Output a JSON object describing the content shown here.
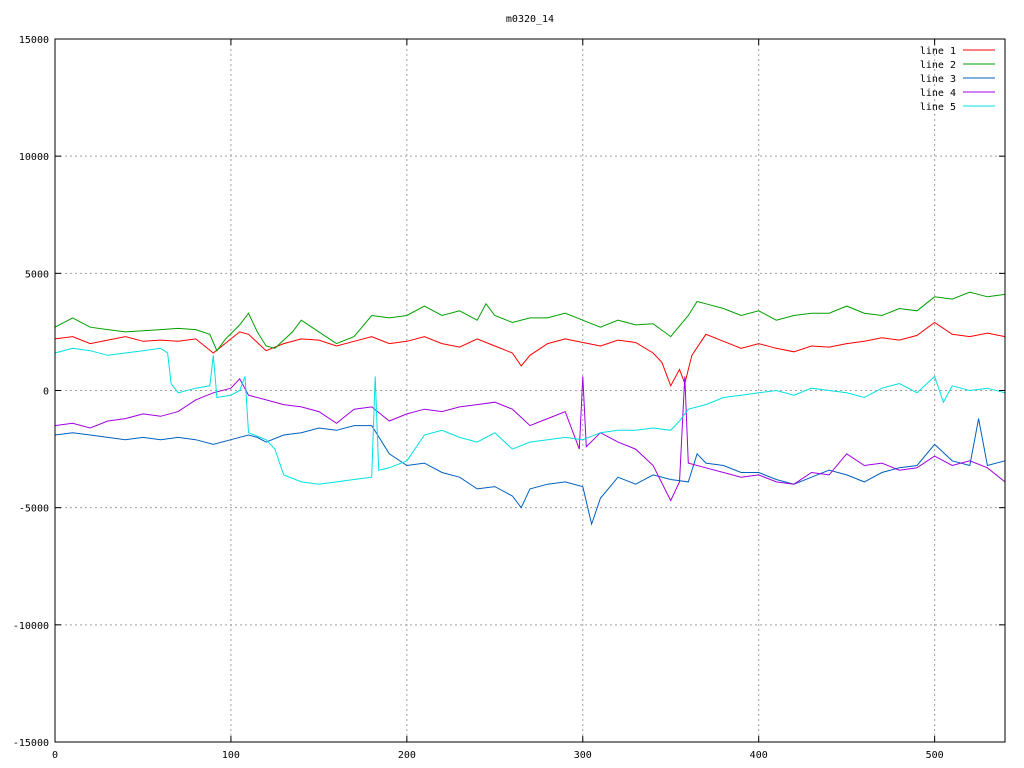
{
  "chart_data": {
    "type": "line",
    "title": "m0320_14",
    "xlabel": "",
    "ylabel": "",
    "xlim": [
      0,
      540
    ],
    "ylim": [
      -15000,
      15000
    ],
    "xticks": [
      0,
      100,
      200,
      300,
      400,
      500
    ],
    "yticks": [
      -15000,
      -10000,
      -5000,
      0,
      5000,
      10000,
      15000
    ],
    "grid": true,
    "legend_position": "top-right",
    "series": [
      {
        "name": "line 1",
        "color": "#ff0000",
        "points": [
          [
            0,
            2200
          ],
          [
            10,
            2300
          ],
          [
            20,
            2000
          ],
          [
            30,
            2150
          ],
          [
            40,
            2300
          ],
          [
            50,
            2100
          ],
          [
            60,
            2150
          ],
          [
            70,
            2100
          ],
          [
            80,
            2200
          ],
          [
            90,
            1600
          ],
          [
            95,
            1900
          ],
          [
            100,
            2200
          ],
          [
            105,
            2500
          ],
          [
            110,
            2400
          ],
          [
            120,
            1700
          ],
          [
            130,
            2000
          ],
          [
            140,
            2200
          ],
          [
            150,
            2150
          ],
          [
            160,
            1900
          ],
          [
            170,
            2100
          ],
          [
            180,
            2300
          ],
          [
            190,
            2000
          ],
          [
            200,
            2100
          ],
          [
            210,
            2300
          ],
          [
            220,
            2000
          ],
          [
            230,
            1850
          ],
          [
            240,
            2200
          ],
          [
            250,
            1900
          ],
          [
            260,
            1600
          ],
          [
            265,
            1050
          ],
          [
            270,
            1500
          ],
          [
            280,
            2000
          ],
          [
            290,
            2200
          ],
          [
            300,
            2050
          ],
          [
            310,
            1900
          ],
          [
            320,
            2150
          ],
          [
            330,
            2050
          ],
          [
            340,
            1600
          ],
          [
            345,
            1200
          ],
          [
            350,
            200
          ],
          [
            355,
            900
          ],
          [
            358,
            300
          ],
          [
            362,
            1500
          ],
          [
            370,
            2400
          ],
          [
            380,
            2100
          ],
          [
            390,
            1800
          ],
          [
            400,
            2000
          ],
          [
            410,
            1800
          ],
          [
            420,
            1650
          ],
          [
            430,
            1900
          ],
          [
            440,
            1850
          ],
          [
            450,
            2000
          ],
          [
            460,
            2100
          ],
          [
            470,
            2250
          ],
          [
            480,
            2150
          ],
          [
            490,
            2350
          ],
          [
            500,
            2900
          ],
          [
            510,
            2400
          ],
          [
            520,
            2300
          ],
          [
            530,
            2450
          ],
          [
            540,
            2300
          ]
        ]
      },
      {
        "name": "line 2",
        "color": "#00a000",
        "points": [
          [
            0,
            2700
          ],
          [
            10,
            3100
          ],
          [
            20,
            2700
          ],
          [
            30,
            2600
          ],
          [
            40,
            2500
          ],
          [
            50,
            2550
          ],
          [
            60,
            2600
          ],
          [
            70,
            2650
          ],
          [
            80,
            2600
          ],
          [
            88,
            2400
          ],
          [
            92,
            1700
          ],
          [
            97,
            2200
          ],
          [
            105,
            2800
          ],
          [
            110,
            3300
          ],
          [
            115,
            2500
          ],
          [
            120,
            1900
          ],
          [
            125,
            1800
          ],
          [
            135,
            2500
          ],
          [
            140,
            3000
          ],
          [
            150,
            2500
          ],
          [
            160,
            2000
          ],
          [
            170,
            2300
          ],
          [
            180,
            3200
          ],
          [
            190,
            3100
          ],
          [
            200,
            3200
          ],
          [
            210,
            3600
          ],
          [
            220,
            3200
          ],
          [
            230,
            3400
          ],
          [
            240,
            3000
          ],
          [
            245,
            3700
          ],
          [
            250,
            3200
          ],
          [
            260,
            2900
          ],
          [
            270,
            3100
          ],
          [
            280,
            3100
          ],
          [
            290,
            3300
          ],
          [
            300,
            3000
          ],
          [
            310,
            2700
          ],
          [
            320,
            3000
          ],
          [
            330,
            2800
          ],
          [
            340,
            2850
          ],
          [
            350,
            2300
          ],
          [
            360,
            3200
          ],
          [
            365,
            3800
          ],
          [
            370,
            3700
          ],
          [
            380,
            3500
          ],
          [
            390,
            3200
          ],
          [
            400,
            3400
          ],
          [
            410,
            3000
          ],
          [
            420,
            3200
          ],
          [
            430,
            3300
          ],
          [
            440,
            3300
          ],
          [
            450,
            3600
          ],
          [
            460,
            3300
          ],
          [
            470,
            3200
          ],
          [
            480,
            3500
          ],
          [
            490,
            3400
          ],
          [
            500,
            4000
          ],
          [
            510,
            3900
          ],
          [
            520,
            4200
          ],
          [
            530,
            4000
          ],
          [
            540,
            4100
          ]
        ]
      },
      {
        "name": "line 3",
        "color": "#0060c0",
        "points": [
          [
            0,
            -1900
          ],
          [
            10,
            -1800
          ],
          [
            20,
            -1900
          ],
          [
            30,
            -2000
          ],
          [
            40,
            -2100
          ],
          [
            50,
            -2000
          ],
          [
            60,
            -2100
          ],
          [
            70,
            -2000
          ],
          [
            80,
            -2100
          ],
          [
            90,
            -2300
          ],
          [
            100,
            -2100
          ],
          [
            110,
            -1900
          ],
          [
            115,
            -2000
          ],
          [
            120,
            -2200
          ],
          [
            130,
            -1900
          ],
          [
            140,
            -1800
          ],
          [
            150,
            -1600
          ],
          [
            160,
            -1700
          ],
          [
            170,
            -1500
          ],
          [
            180,
            -1500
          ],
          [
            190,
            -2700
          ],
          [
            200,
            -3200
          ],
          [
            210,
            -3100
          ],
          [
            220,
            -3500
          ],
          [
            230,
            -3700
          ],
          [
            240,
            -4200
          ],
          [
            250,
            -4100
          ],
          [
            260,
            -4500
          ],
          [
            265,
            -5000
          ],
          [
            270,
            -4200
          ],
          [
            280,
            -4000
          ],
          [
            290,
            -3900
          ],
          [
            300,
            -4100
          ],
          [
            305,
            -5700
          ],
          [
            310,
            -4600
          ],
          [
            320,
            -3700
          ],
          [
            330,
            -4000
          ],
          [
            340,
            -3600
          ],
          [
            350,
            -3800
          ],
          [
            360,
            -3900
          ],
          [
            365,
            -2700
          ],
          [
            370,
            -3100
          ],
          [
            380,
            -3200
          ],
          [
            390,
            -3500
          ],
          [
            400,
            -3500
          ],
          [
            410,
            -3800
          ],
          [
            420,
            -4000
          ],
          [
            430,
            -3700
          ],
          [
            440,
            -3400
          ],
          [
            450,
            -3600
          ],
          [
            460,
            -3900
          ],
          [
            470,
            -3500
          ],
          [
            480,
            -3300
          ],
          [
            490,
            -3200
          ],
          [
            500,
            -2300
          ],
          [
            510,
            -3000
          ],
          [
            520,
            -3200
          ],
          [
            525,
            -1200
          ],
          [
            530,
            -3200
          ],
          [
            540,
            -3000
          ]
        ]
      },
      {
        "name": "line 4",
        "color": "#a000e0",
        "points": [
          [
            0,
            -1500
          ],
          [
            10,
            -1400
          ],
          [
            20,
            -1600
          ],
          [
            30,
            -1300
          ],
          [
            40,
            -1200
          ],
          [
            50,
            -1000
          ],
          [
            60,
            -1100
          ],
          [
            70,
            -900
          ],
          [
            80,
            -400
          ],
          [
            90,
            -100
          ],
          [
            100,
            100
          ],
          [
            105,
            500
          ],
          [
            110,
            -200
          ],
          [
            120,
            -400
          ],
          [
            130,
            -600
          ],
          [
            140,
            -700
          ],
          [
            150,
            -900
          ],
          [
            160,
            -1400
          ],
          [
            170,
            -800
          ],
          [
            180,
            -700
          ],
          [
            190,
            -1300
          ],
          [
            200,
            -1000
          ],
          [
            210,
            -800
          ],
          [
            220,
            -900
          ],
          [
            230,
            -700
          ],
          [
            240,
            -600
          ],
          [
            250,
            -500
          ],
          [
            260,
            -800
          ],
          [
            270,
            -1500
          ],
          [
            280,
            -1200
          ],
          [
            290,
            -900
          ],
          [
            298,
            -2500
          ],
          [
            300,
            600
          ],
          [
            302,
            -2400
          ],
          [
            310,
            -1800
          ],
          [
            320,
            -2200
          ],
          [
            330,
            -2500
          ],
          [
            340,
            -3200
          ],
          [
            350,
            -4700
          ],
          [
            355,
            -3900
          ],
          [
            358,
            600
          ],
          [
            360,
            -3100
          ],
          [
            370,
            -3300
          ],
          [
            380,
            -3500
          ],
          [
            390,
            -3700
          ],
          [
            400,
            -3600
          ],
          [
            410,
            -3900
          ],
          [
            420,
            -4000
          ],
          [
            430,
            -3500
          ],
          [
            440,
            -3600
          ],
          [
            450,
            -2700
          ],
          [
            460,
            -3200
          ],
          [
            470,
            -3100
          ],
          [
            480,
            -3400
          ],
          [
            490,
            -3300
          ],
          [
            500,
            -2800
          ],
          [
            510,
            -3200
          ],
          [
            520,
            -3000
          ],
          [
            530,
            -3300
          ],
          [
            540,
            -3900
          ]
        ]
      },
      {
        "name": "line 5",
        "color": "#00e0e0",
        "points": [
          [
            0,
            1600
          ],
          [
            10,
            1800
          ],
          [
            20,
            1700
          ],
          [
            30,
            1500
          ],
          [
            40,
            1600
          ],
          [
            50,
            1700
          ],
          [
            60,
            1800
          ],
          [
            64,
            1600
          ],
          [
            66,
            300
          ],
          [
            70,
            -100
          ],
          [
            80,
            100
          ],
          [
            88,
            200
          ],
          [
            90,
            1500
          ],
          [
            92,
            -300
          ],
          [
            100,
            -200
          ],
          [
            105,
            0
          ],
          [
            108,
            600
          ],
          [
            110,
            -1800
          ],
          [
            120,
            -2100
          ],
          [
            125,
            -2500
          ],
          [
            130,
            -3600
          ],
          [
            140,
            -3900
          ],
          [
            150,
            -4000
          ],
          [
            160,
            -3900
          ],
          [
            170,
            -3800
          ],
          [
            180,
            -3700
          ],
          [
            182,
            600
          ],
          [
            184,
            -3400
          ],
          [
            190,
            -3300
          ],
          [
            200,
            -3000
          ],
          [
            210,
            -1900
          ],
          [
            220,
            -1700
          ],
          [
            230,
            -2000
          ],
          [
            240,
            -2200
          ],
          [
            250,
            -1800
          ],
          [
            260,
            -2500
          ],
          [
            270,
            -2200
          ],
          [
            280,
            -2100
          ],
          [
            290,
            -2000
          ],
          [
            300,
            -2100
          ],
          [
            310,
            -1800
          ],
          [
            320,
            -1700
          ],
          [
            330,
            -1700
          ],
          [
            340,
            -1600
          ],
          [
            350,
            -1700
          ],
          [
            355,
            -1300
          ],
          [
            360,
            -800
          ],
          [
            370,
            -600
          ],
          [
            380,
            -300
          ],
          [
            390,
            -200
          ],
          [
            400,
            -100
          ],
          [
            410,
            0
          ],
          [
            420,
            -200
          ],
          [
            430,
            100
          ],
          [
            440,
            0
          ],
          [
            450,
            -100
          ],
          [
            460,
            -300
          ],
          [
            470,
            100
          ],
          [
            480,
            300
          ],
          [
            490,
            -100
          ],
          [
            500,
            600
          ],
          [
            505,
            -500
          ],
          [
            510,
            200
          ],
          [
            520,
            0
          ],
          [
            530,
            100
          ],
          [
            540,
            -100
          ]
        ]
      }
    ]
  }
}
